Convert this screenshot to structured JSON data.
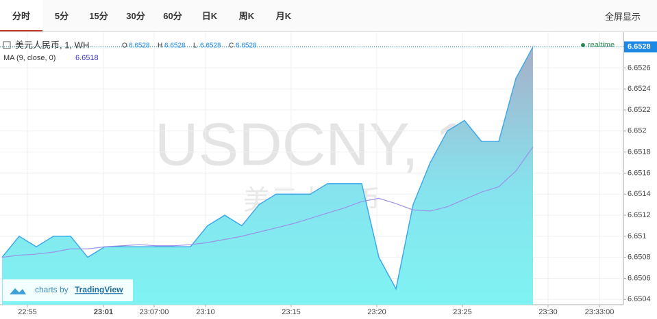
{
  "tabs": [
    "分时",
    "5分",
    "15分",
    "30分",
    "60分",
    "日K",
    "周K",
    "月K"
  ],
  "fullscreen": "全屏显示",
  "chart_data": {
    "type": "area",
    "symbol": "美元人民币, 1, WH",
    "ohlc_labels": [
      "O",
      "H",
      "L",
      "C"
    ],
    "ohlc_values": [
      6.6528,
      6.6528,
      6.6528,
      6.6528
    ],
    "ma_label": "MA (9, close, 0)",
    "ma_value": 6.6518,
    "realtime": "realtime",
    "last_price": 6.6528,
    "watermark": "USDCNY, 1",
    "watermark_sub": "美元人民币",
    "credit": "charts by",
    "credit_brand": "TradingView",
    "x": [
      0,
      1,
      2,
      3,
      4,
      5,
      6,
      7,
      8,
      9,
      10,
      11,
      12,
      13,
      14,
      15,
      16,
      17,
      18,
      19,
      20,
      21,
      22,
      23,
      24,
      25,
      26,
      27,
      28,
      29,
      30,
      31
    ],
    "series": [
      {
        "name": "USDCNY",
        "color": "#3fa9e8",
        "values": [
          6.6508,
          6.651,
          6.6509,
          6.651,
          6.651,
          6.6508,
          6.6509,
          6.6509,
          6.6509,
          6.6509,
          6.6509,
          6.6509,
          6.6511,
          6.6512,
          6.6511,
          6.6513,
          6.6514,
          6.6514,
          6.6514,
          6.6515,
          6.6515,
          6.6515,
          6.6508,
          6.6505,
          6.6513,
          6.6517,
          6.652,
          6.6521,
          6.6519,
          6.6519,
          6.6525,
          6.6528
        ]
      },
      {
        "name": "MA",
        "color": "#9a92e8",
        "values": [
          6.6508,
          6.65082,
          6.65083,
          6.65085,
          6.65088,
          6.65088,
          6.6509,
          6.65091,
          6.65092,
          6.65091,
          6.65091,
          6.65092,
          6.65094,
          6.65097,
          6.651,
          6.65104,
          6.65108,
          6.65112,
          6.65117,
          6.65122,
          6.65127,
          6.65133,
          6.65136,
          6.65131,
          6.65125,
          6.65124,
          6.65128,
          6.65135,
          6.65142,
          6.65147,
          6.65162,
          6.65185
        ]
      }
    ],
    "xlim": [
      -0.12,
      36.28
    ],
    "xticks": [
      {
        "value": 1.48,
        "label": "22:55"
      },
      {
        "value": 5.92,
        "label": "23:01"
      },
      {
        "value": 8.88,
        "label": "23:07:00"
      },
      {
        "value": 11.88,
        "label": "23:10"
      },
      {
        "value": 16.88,
        "label": "23:15"
      },
      {
        "value": 21.88,
        "label": "23:20"
      },
      {
        "value": 26.88,
        "label": "23:25"
      },
      {
        "value": 31.88,
        "label": "23:30"
      },
      {
        "value": 34.88,
        "label": "23:33:00"
      }
    ],
    "ylim": [
      6.65035,
      6.65294
    ],
    "yticks": [
      6.6504,
      6.6506,
      6.6508,
      6.651,
      6.6512,
      6.6514,
      6.6516,
      6.6518,
      6.652,
      6.6522,
      6.6524,
      6.6526,
      6.6528
    ],
    "grid": true
  }
}
